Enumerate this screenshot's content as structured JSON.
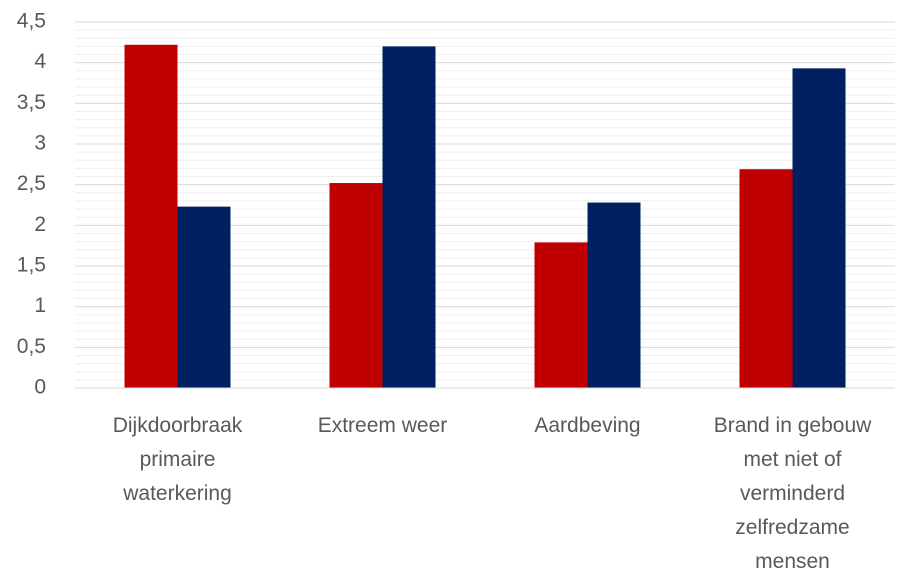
{
  "chart_data": {
    "type": "bar",
    "title": "",
    "xlabel": "",
    "ylabel": "",
    "categories": [
      [
        "Dijkdoorbraak",
        "primaire",
        "waterkering"
      ],
      [
        "Extreem weer"
      ],
      [
        "Aardbeving"
      ],
      [
        "Brand in gebouw",
        "met niet of",
        "verminderd",
        "zelfredzame",
        "mensen"
      ]
    ],
    "series": [
      {
        "values": [
          4.22,
          2.52,
          1.79,
          2.69
        ],
        "color": "#c00000"
      },
      {
        "values": [
          2.23,
          4.2,
          2.28,
          3.93
        ],
        "color": "#002060"
      }
    ],
    "ylim": [
      0,
      4.5
    ],
    "yticks": [
      "0",
      "0,5",
      "1",
      "1,5",
      "2",
      "2,5",
      "3",
      "3,5",
      "4",
      "4,5"
    ],
    "ytick_values": [
      0,
      0.5,
      1,
      1.5,
      2,
      2.5,
      3,
      3.5,
      4,
      4.5
    ],
    "grid": true,
    "legend": "none"
  }
}
